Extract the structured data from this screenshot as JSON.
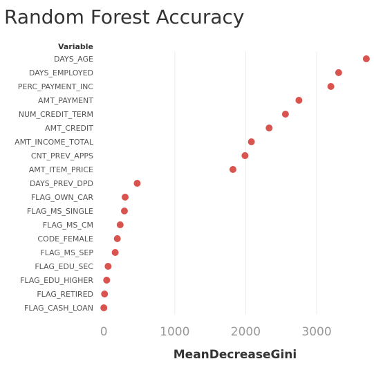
{
  "chart_data": {
    "type": "scatter",
    "title": "Random Forest Accuracy",
    "category_header": "Variable",
    "xlabel": "MeanDecreaseGini",
    "xlim": [
      -80,
      3750
    ],
    "xticks": [
      0,
      1000,
      2000,
      3000
    ],
    "grid": true,
    "marker_color": "#d9534f",
    "categories": [
      "DAYS_AGE",
      "DAYS_EMPLOYED",
      "PERC_PAYMENT_INC",
      "AMT_PAYMENT",
      "NUM_CREDIT_TERM",
      "AMT_CREDIT",
      "AMT_INCOME_TOTAL",
      "CNT_PREV_APPS",
      "AMT_ITEM_PRICE",
      "DAYS_PREV_DPD",
      "FLAG_OWN_CAR",
      "FLAG_MS_SINGLE",
      "FLAG_MS_CM",
      "CODE_FEMALE",
      "FLAG_MS_SEP",
      "FLAG_EDU_SEC",
      "FLAG_EDU_HIGHER",
      "FLAG_RETIRED",
      "FLAG_CASH_LOAN"
    ],
    "values": [
      3700,
      3310,
      3200,
      2750,
      2560,
      2330,
      2080,
      1990,
      1820,
      470,
      300,
      290,
      230,
      190,
      160,
      60,
      40,
      10,
      0
    ]
  }
}
